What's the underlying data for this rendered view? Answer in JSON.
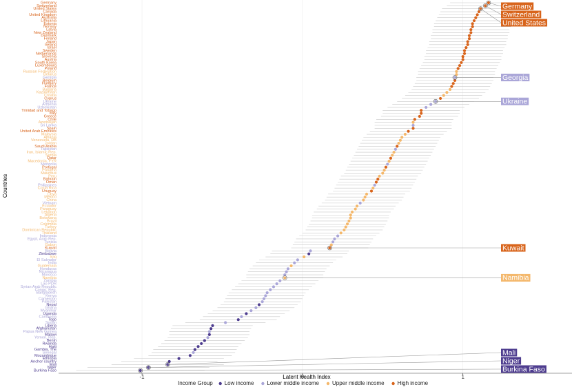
{
  "chart_data": {
    "type": "dot",
    "xlabel": "Latent Health Index",
    "ylabel": "Countries",
    "xlim": [
      -1.52,
      1.68
    ],
    "xticks": [
      -1,
      0,
      1
    ],
    "grid": true,
    "legend": {
      "title": "Income Group",
      "position": "bottom",
      "items": [
        {
          "name": "Low income",
          "color": "#4e3d8f"
        },
        {
          "name": "Lower middle income",
          "color": "#aaa6d8"
        },
        {
          "name": "Upper middle income",
          "color": "#f4b86c"
        },
        {
          "name": "High income",
          "color": "#d8641b"
        }
      ]
    },
    "categories": [
      "Germany",
      "Switzerland",
      "United States",
      "Canada",
      "United Kingdom",
      "Australia",
      "Lithuania",
      "Estonia",
      "Norway",
      "Latvia",
      "New Zealand",
      "Denmark",
      "Finland",
      "Japan",
      "Ireland",
      "Israel",
      "Sweden",
      "Netherlands",
      "Slovenia",
      "Austria",
      "South Korea",
      "Luxembourg",
      "Poland",
      "Russian Federation",
      "Belarus",
      "Georgia",
      "Belgium",
      "Hungary",
      "France",
      "Bulgaria",
      "Kazakhstan",
      "Croatia",
      "Cyprus",
      "Ukraine",
      "Armenia",
      "Uzbekistan",
      "Trinidad and Tobago",
      "Italy",
      "Greece",
      "Chile",
      "Azerbaijan",
      "Sri Lanka",
      "Spain",
      "United Arab Emirates",
      "Malaysia",
      "Albania",
      "Venezuela, RB",
      "Jordan",
      "Saudi Arabia",
      "Tajikistan",
      "Iran, Islamic Rep.",
      "Serbia",
      "Qatar",
      "Macedonia, FYR",
      "Mongolia",
      "Portugal",
      "Panama",
      "Mauritius",
      "Peru",
      "Bahrain",
      "Oman",
      "Philippines",
      "Costa Rica",
      "Uruguay",
      "Libya",
      "Mexico",
      "China",
      "Vietnam",
      "Ecuador",
      "Paraguay",
      "Lebanon",
      "Algeria",
      "Botswana",
      "Brazil",
      "Colombia",
      "Turkey",
      "Dominican Republic",
      "Thailand",
      "Indonesia",
      "Egypt, Arab Rep.",
      "Tunisia",
      "Gabon",
      "Kuwait",
      "Bolivia",
      "Zimbabwe",
      "Iraq",
      "El Salvador",
      "India",
      "Guatemala",
      "Honduras",
      "Nicaragua",
      "Morocco",
      "Namibia",
      "Zambia",
      "Lao PDR",
      "Syrian Arab Republic",
      "Congo, Rep.",
      "Bangladesh",
      "Kenya",
      "Cameroon",
      "Pakistan",
      "Nepal",
      "Ghana",
      "Myanmar",
      "Uganda",
      "Cambodia",
      "Togo",
      "Sudan",
      "Liberia",
      "Afghanistan",
      "Papua New Guinea",
      "Malawi",
      "Yemen, Rep.",
      "Benin",
      "Rwanda",
      "Haiti",
      "Gambia, The",
      "Senegal",
      "Mozambique",
      "Ethiopia",
      "Anchor country",
      "Mali",
      "Niger",
      "Burkina Faso"
    ],
    "groups": [
      "High income",
      "High income",
      "High income",
      "High income",
      "High income",
      "High income",
      "High income",
      "High income",
      "High income",
      "High income",
      "High income",
      "High income",
      "High income",
      "High income",
      "High income",
      "High income",
      "High income",
      "High income",
      "High income",
      "High income",
      "High income",
      "High income",
      "High income",
      "Upper middle income",
      "Upper middle income",
      "Lower middle income",
      "High income",
      "High income",
      "High income",
      "Upper middle income",
      "Upper middle income",
      "Upper middle income",
      "High income",
      "Lower middle income",
      "Lower middle income",
      "Lower middle income",
      "High income",
      "High income",
      "High income",
      "High income",
      "Upper middle income",
      "Lower middle income",
      "High income",
      "High income",
      "Upper middle income",
      "Upper middle income",
      "Upper middle income",
      "Upper middle income",
      "High income",
      "Lower middle income",
      "Upper middle income",
      "Upper middle income",
      "High income",
      "Upper middle income",
      "Lower middle income",
      "High income",
      "Upper middle income",
      "Upper middle income",
      "Upper middle income",
      "High income",
      "High income",
      "Lower middle income",
      "Upper middle income",
      "High income",
      "Upper middle income",
      "Upper middle income",
      "Upper middle income",
      "Lower middle income",
      "Upper middle income",
      "Upper middle income",
      "Upper middle income",
      "Upper middle income",
      "Upper middle income",
      "Upper middle income",
      "Upper middle income",
      "Upper middle income",
      "Upper middle income",
      "Upper middle income",
      "Lower middle income",
      "Lower middle income",
      "Lower middle income",
      "Upper middle income",
      "High income",
      "Lower middle income",
      "Low income",
      "Upper middle income",
      "Lower middle income",
      "Lower middle income",
      "Upper middle income",
      "Lower middle income",
      "Lower middle income",
      "Lower middle income",
      "Upper middle income",
      "Lower middle income",
      "Lower middle income",
      "Lower middle income",
      "Lower middle income",
      "Lower middle income",
      "Lower middle income",
      "Lower middle income",
      "Lower middle income",
      "Low income",
      "Lower middle income",
      "Lower middle income",
      "Low income",
      "Lower middle income",
      "Low income",
      "Lower middle income",
      "Low income",
      "Low income",
      "Lower middle income",
      "Low income",
      "Lower middle income",
      "Low income",
      "Low income",
      "Low income",
      "Low income",
      "Lower middle income",
      "Low income",
      "Low income",
      "Low income",
      "Low income",
      "Low income",
      "Low income"
    ],
    "values": [
      1.16,
      1.14,
      1.11,
      1.1,
      1.09,
      1.08,
      1.07,
      1.06,
      1.06,
      1.05,
      1.05,
      1.04,
      1.04,
      1.03,
      1.03,
      1.02,
      1.01,
      1.01,
      1.0,
      1.0,
      0.99,
      0.98,
      0.97,
      0.96,
      0.96,
      0.95,
      0.95,
      0.94,
      0.93,
      0.92,
      0.9,
      0.88,
      0.86,
      0.83,
      0.8,
      0.77,
      0.74,
      0.74,
      0.73,
      0.7,
      0.69,
      0.69,
      0.69,
      0.66,
      0.64,
      0.62,
      0.61,
      0.6,
      0.59,
      0.58,
      0.57,
      0.56,
      0.55,
      0.54,
      0.53,
      0.52,
      0.51,
      0.5,
      0.48,
      0.47,
      0.46,
      0.45,
      0.44,
      0.43,
      0.4,
      0.39,
      0.38,
      0.36,
      0.34,
      0.33,
      0.31,
      0.3,
      0.3,
      0.29,
      0.28,
      0.27,
      0.26,
      0.24,
      0.22,
      0.2,
      0.19,
      0.18,
      0.17,
      0.05,
      0.04,
      0.01,
      -0.03,
      -0.05,
      -0.07,
      -0.09,
      -0.1,
      -0.11,
      -0.11,
      -0.14,
      -0.16,
      -0.18,
      -0.2,
      -0.22,
      -0.23,
      -0.24,
      -0.25,
      -0.27,
      -0.29,
      -0.32,
      -0.35,
      -0.38,
      -0.4,
      -0.48,
      -0.56,
      -0.57,
      -0.58,
      -0.58,
      -0.59,
      -0.61,
      -0.63,
      -0.65,
      -0.67,
      -0.68,
      -0.7,
      -0.77,
      -0.83,
      -0.84,
      -0.96,
      -1.01
    ],
    "errors": [
      0.24,
      0.24,
      0.24,
      0.24,
      0.24,
      0.24,
      0.24,
      0.24,
      0.24,
      0.24,
      0.24,
      0.24,
      0.24,
      0.24,
      0.24,
      0.24,
      0.24,
      0.24,
      0.24,
      0.24,
      0.24,
      0.24,
      0.24,
      0.24,
      0.24,
      0.24,
      0.24,
      0.24,
      0.24,
      0.24,
      0.24,
      0.24,
      0.24,
      0.24,
      0.24,
      0.24,
      0.24,
      0.24,
      0.24,
      0.24,
      0.24,
      0.24,
      0.24,
      0.24,
      0.24,
      0.24,
      0.24,
      0.24,
      0.24,
      0.24,
      0.24,
      0.24,
      0.24,
      0.24,
      0.24,
      0.24,
      0.24,
      0.24,
      0.24,
      0.24,
      0.24,
      0.24,
      0.24,
      0.24,
      0.24,
      0.24,
      0.24,
      0.24,
      0.24,
      0.24,
      0.24,
      0.24,
      0.24,
      0.24,
      0.24,
      0.24,
      0.24,
      0.24,
      0.24,
      0.24,
      0.24,
      0.24,
      0.24,
      0.24,
      0.24,
      0.24,
      0.24,
      0.24,
      0.24,
      0.24,
      0.24,
      0.24,
      0.24,
      0.24,
      0.24,
      0.24,
      0.24,
      0.24,
      0.24,
      0.24,
      0.24,
      0.24,
      0.24,
      0.24,
      0.24,
      0.24,
      0.24,
      0.25,
      0.25,
      0.25,
      0.25,
      0.25,
      0.25,
      0.25,
      0.25,
      0.25,
      0.26,
      0.26,
      0.26,
      0.28,
      0.3,
      0.35,
      0.38,
      0.4
    ],
    "annotations": [
      "Germany",
      "Switzerland",
      "United States",
      "Georgia",
      "Ukraine",
      "Kuwait",
      "Namibia",
      "Mali",
      "Niger",
      "Burkina Faso"
    ]
  }
}
